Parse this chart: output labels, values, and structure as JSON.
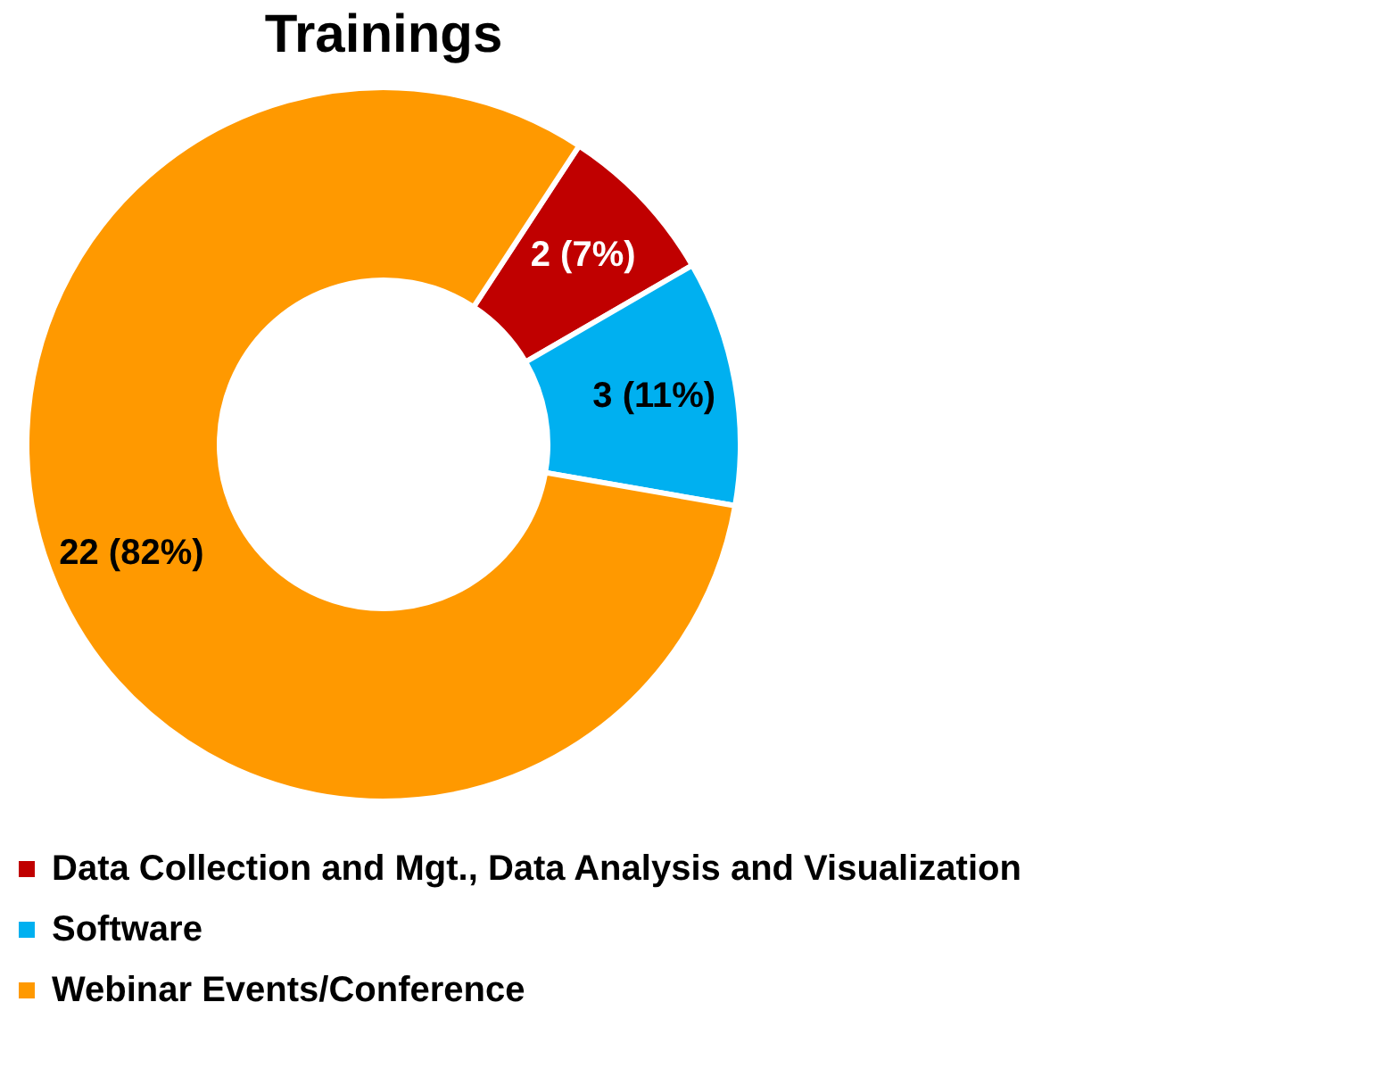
{
  "chart_data": {
    "type": "donut",
    "title": "Trainings",
    "categories": [
      "Data Collection and Mgt., Data Analysis and Visualization",
      "Software",
      "Webinar Events/Conference"
    ],
    "values": [
      2,
      3,
      22
    ],
    "colors": [
      "#c00000",
      "#00b0f0",
      "#ff9900"
    ],
    "value_labels": [
      "2 (7%)",
      "3 (11%)",
      "22 (82%)"
    ],
    "legend": "bottom"
  }
}
